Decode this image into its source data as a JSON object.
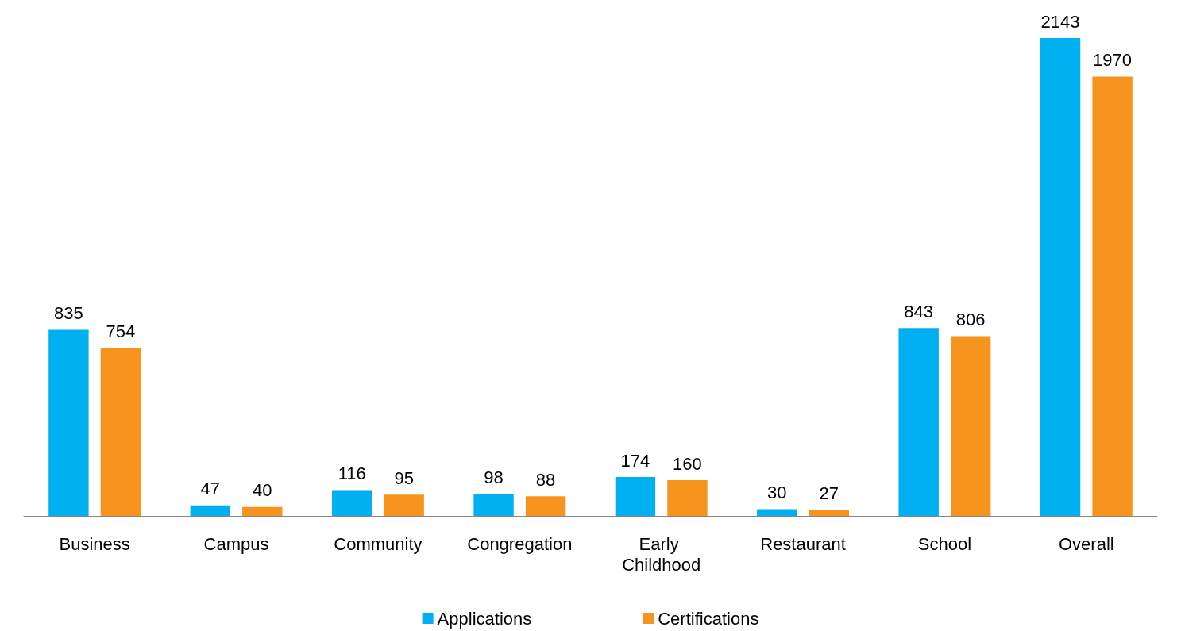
{
  "chart_data": {
    "type": "bar",
    "categories": [
      "Business",
      "Campus",
      "Community",
      "Congregation",
      "Early Childhood",
      "Restaurant",
      "School",
      "Overall"
    ],
    "series": [
      {
        "name": "Applications",
        "color": "#00b0f0",
        "values": [
          835,
          47,
          116,
          98,
          174,
          30,
          843,
          2143
        ]
      },
      {
        "name": "Certifications",
        "color": "#f7941d",
        "values": [
          754,
          40,
          95,
          88,
          160,
          27,
          806,
          1970
        ]
      }
    ],
    "data_labels": true,
    "legend": "bottom",
    "grid": false
  }
}
